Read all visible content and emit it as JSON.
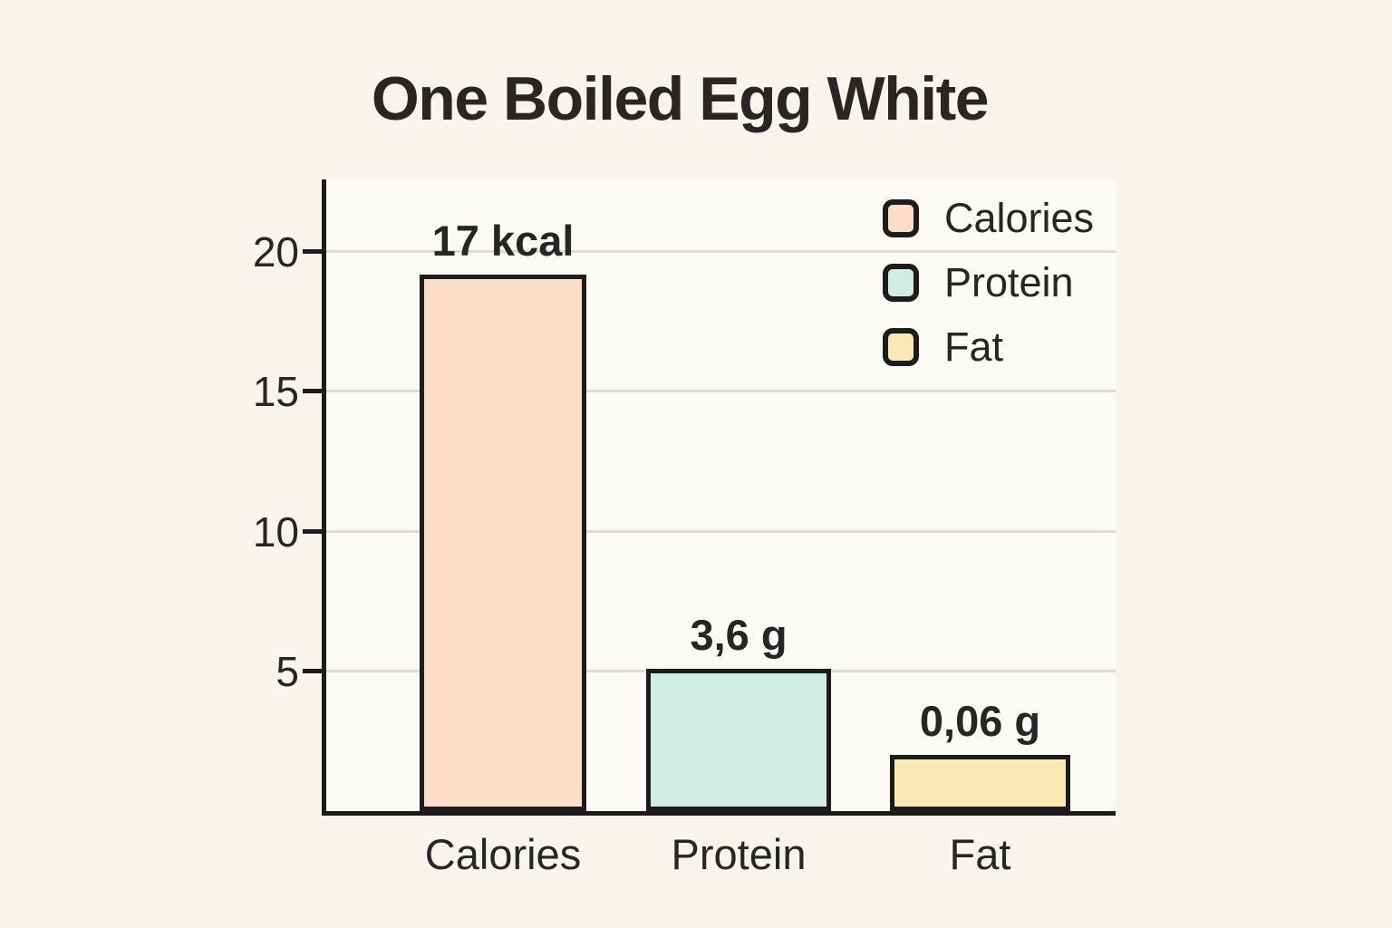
{
  "page": {
    "background_color": "#f7f4ed",
    "plot_background_color": "#fcfaf4",
    "axis_color": "#1c1c1c",
    "gridline_color": "#dcdad3",
    "text_color": "#262626"
  },
  "chart_data": {
    "type": "bar",
    "title": "One Boiled Egg White",
    "categories": [
      "Calories",
      "Protein",
      "Fat"
    ],
    "values": [
      17,
      3.6,
      0.06
    ],
    "value_labels": [
      "17 kcal",
      "3,6 g",
      "0,06 g"
    ],
    "drawn_values": [
      19.2,
      5.1,
      2.0
    ],
    "ylim": [
      0,
      22.6
    ],
    "yticks": [
      5,
      10,
      15,
      20
    ],
    "grid": "horizontal",
    "xlabel": "",
    "ylabel": "",
    "bar_colors": [
      "#fbddc9",
      "#cfede5",
      "#fbe9b4"
    ],
    "legend_position": "top-right",
    "legend": [
      {
        "label": "Calories",
        "color": "#fbddc9"
      },
      {
        "label": "Protein",
        "color": "#cfede5"
      },
      {
        "label": "Fat",
        "color": "#fbe9b4"
      }
    ]
  }
}
